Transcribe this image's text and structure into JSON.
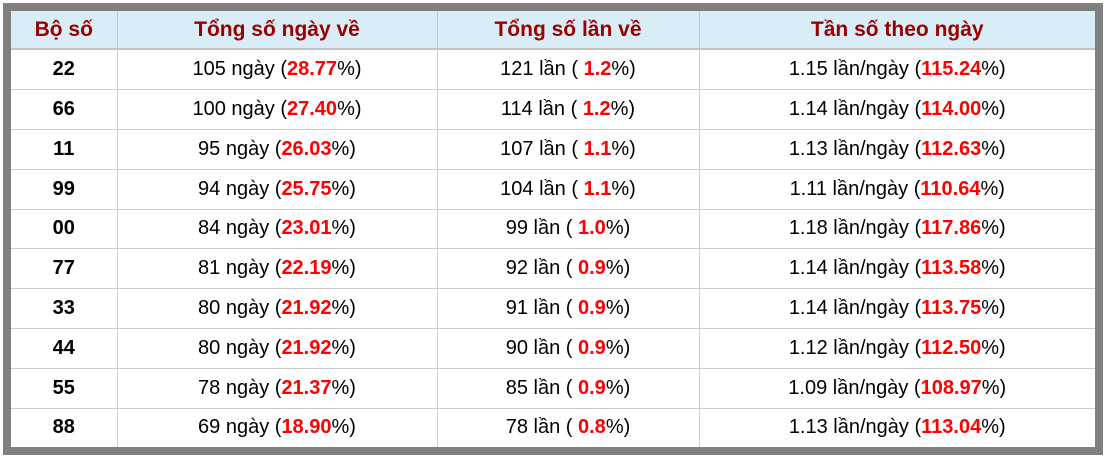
{
  "table": {
    "columns": [
      "Bộ số",
      "Tổng số ngày về",
      "Tổng số lần về",
      "Tần số theo ngày"
    ],
    "pct_suffix": "%)",
    "rows": [
      {
        "pair": "22",
        "days_text": "105 ngày (",
        "days_pct": "28.77",
        "times_text": "121 lần ( ",
        "times_pct": "1.2",
        "freq_text": "1.15 lần/ngày (",
        "freq_pct": "115.24"
      },
      {
        "pair": "66",
        "days_text": "100 ngày (",
        "days_pct": "27.40",
        "times_text": "114 lần ( ",
        "times_pct": "1.2",
        "freq_text": "1.14 lần/ngày (",
        "freq_pct": "114.00"
      },
      {
        "pair": "11",
        "days_text": "95 ngày (",
        "days_pct": "26.03",
        "times_text": "107 lần ( ",
        "times_pct": "1.1",
        "freq_text": "1.13 lần/ngày (",
        "freq_pct": "112.63"
      },
      {
        "pair": "99",
        "days_text": "94 ngày (",
        "days_pct": "25.75",
        "times_text": "104 lần ( ",
        "times_pct": "1.1",
        "freq_text": "1.11 lần/ngày (",
        "freq_pct": "110.64"
      },
      {
        "pair": "00",
        "days_text": "84 ngày (",
        "days_pct": "23.01",
        "times_text": "99 lần ( ",
        "times_pct": "1.0",
        "freq_text": "1.18 lần/ngày (",
        "freq_pct": "117.86"
      },
      {
        "pair": "77",
        "days_text": "81 ngày (",
        "days_pct": "22.19",
        "times_text": "92 lần ( ",
        "times_pct": "0.9",
        "freq_text": "1.14 lần/ngày (",
        "freq_pct": "113.58"
      },
      {
        "pair": "33",
        "days_text": "80 ngày (",
        "days_pct": "21.92",
        "times_text": "91 lần ( ",
        "times_pct": "0.9",
        "freq_text": "1.14 lần/ngày (",
        "freq_pct": "113.75"
      },
      {
        "pair": "44",
        "days_text": "80 ngày (",
        "days_pct": "21.92",
        "times_text": "90 lần ( ",
        "times_pct": "0.9",
        "freq_text": "1.12 lần/ngày (",
        "freq_pct": "112.50"
      },
      {
        "pair": "55",
        "days_text": "78 ngày (",
        "days_pct": "21.37",
        "times_text": "85 lần ( ",
        "times_pct": "0.9",
        "freq_text": "1.09 lần/ngày (",
        "freq_pct": "108.97"
      },
      {
        "pair": "88",
        "days_text": "69 ngày (",
        "days_pct": "18.90",
        "times_text": "78 lần ( ",
        "times_pct": "0.8",
        "freq_text": "1.13 lần/ngày (",
        "freq_pct": "113.04"
      }
    ]
  },
  "colors": {
    "header_background": "#d9edf6",
    "header_text": "#990000",
    "highlight_red": "#ff0000",
    "outer_border": "#7f7f7f",
    "row_border": "#cccccc"
  }
}
